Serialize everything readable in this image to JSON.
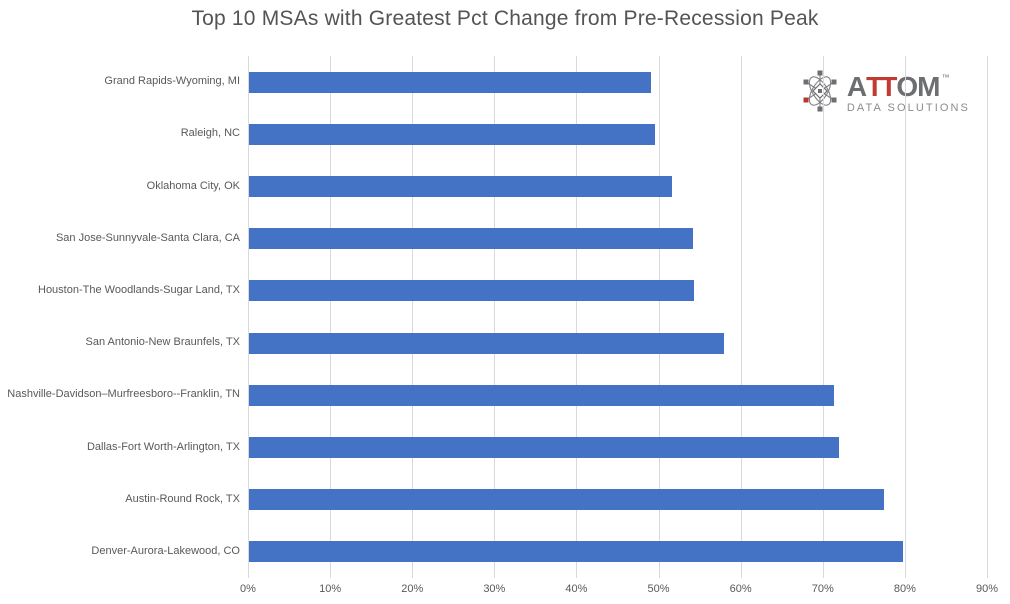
{
  "title": "Top 10 MSAs with Greatest Pct Change from Pre-Recession Peak",
  "logo": {
    "word_a": "A",
    "word_tt": "TT",
    "word_om": "OM",
    "trademark": "™",
    "subtitle": "DATA SOLUTIONS",
    "gray": "#6d6e71",
    "red": "#c23b33"
  },
  "colors": {
    "bar": "#4472c4",
    "gridline": "#d9d9d9",
    "label_text": "#595959",
    "title_text": "#545454"
  },
  "chart_data": {
    "type": "bar",
    "orientation": "horizontal",
    "title": "Top 10 MSAs with Greatest Pct Change from Pre-Recession Peak",
    "categories": [
      "Grand Rapids-Wyoming, MI",
      "Raleigh, NC",
      "Oklahoma City, OK",
      "San Jose-Sunnyvale-Santa Clara, CA",
      "Houston-The Woodlands-Sugar Land, TX",
      "San Antonio-New Braunfels, TX",
      "Nashville-Davidson–Murfreesboro--Franklin, TN",
      "Dallas-Fort Worth-Arlington, TX",
      "Austin-Round Rock, TX",
      "Denver-Aurora-Lakewood, CO"
    ],
    "values": [
      48.9,
      49.4,
      51.5,
      54.1,
      54.2,
      57.8,
      71.2,
      71.9,
      77.3,
      79.6
    ],
    "unit": "%",
    "xlabel": "",
    "ylabel": "",
    "xlim": [
      0,
      90
    ],
    "x_ticks": [
      "0%",
      "10%",
      "20%",
      "30%",
      "40%",
      "50%",
      "60%",
      "70%",
      "80%",
      "90%"
    ],
    "grid": true,
    "legend": false
  }
}
